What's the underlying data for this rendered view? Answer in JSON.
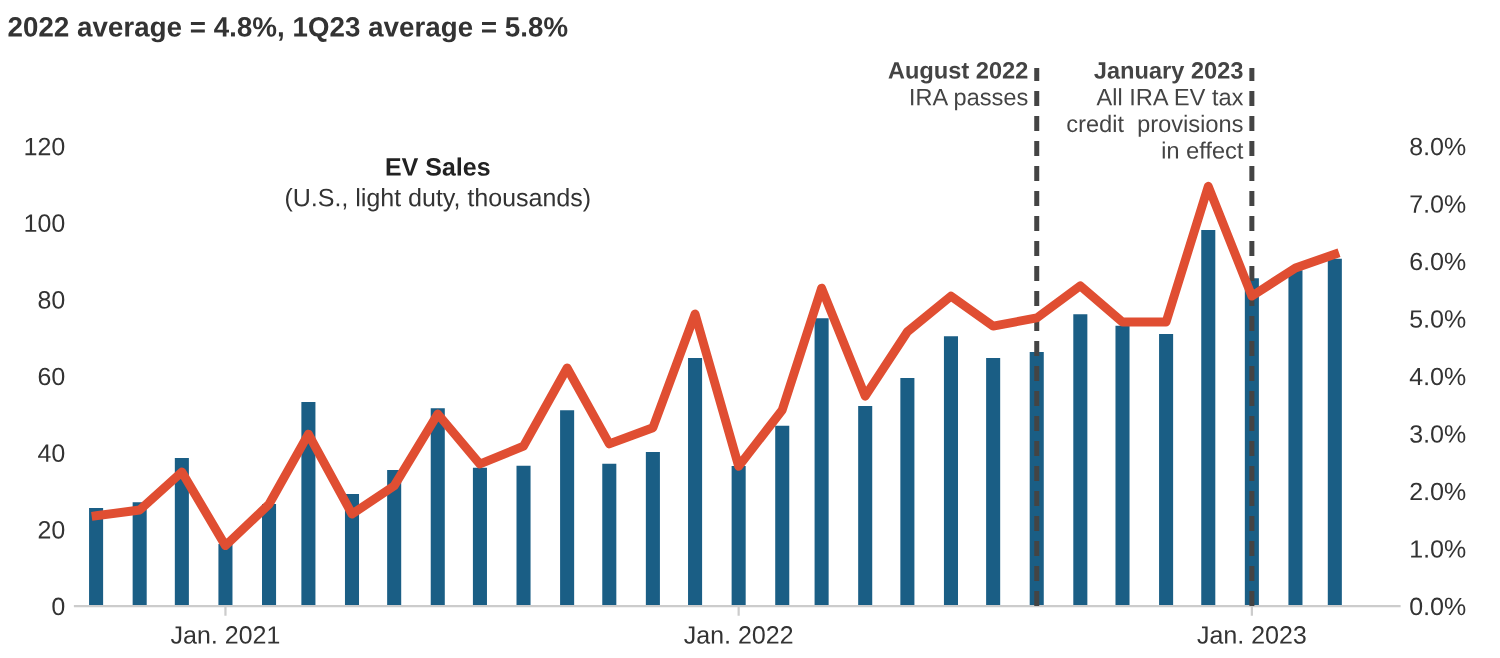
{
  "chart_data": {
    "type": "bar",
    "title": "2022 average = 4.8%, 1Q23 average = 5.8%",
    "x": [
      "2020-10",
      "2020-11",
      "2020-12",
      "2021-01",
      "2021-02",
      "2021-03",
      "2021-04",
      "2021-05",
      "2021-06",
      "2021-07",
      "2021-08",
      "2021-09",
      "2021-10",
      "2021-11",
      "2021-12",
      "2022-01",
      "2022-02",
      "2022-03",
      "2022-04",
      "2022-05",
      "2022-06",
      "2022-07",
      "2022-08",
      "2022-09",
      "2022-10",
      "2022-11",
      "2022-12",
      "2023-01",
      "2023-02",
      "2023-03"
    ],
    "series": [
      {
        "color": "#1a5e85",
        "values": [
          25.6,
          27.1,
          38.6,
          16.2,
          26.6,
          53.2,
          29.2,
          35.5,
          51.6,
          36.1,
          36.6,
          51.1,
          37.1,
          40.2,
          64.7,
          36.5,
          47.0,
          75.1,
          52.2,
          59.5,
          70.4,
          64.7,
          66.3,
          76.1,
          73.1,
          71.0,
          98.1,
          85.5,
          87.6,
          90.6
        ]
      },
      {
        "type": "line",
        "axis": "y2",
        "color": "#e04e32",
        "values": [
          1.57,
          1.67,
          2.33,
          1.05,
          1.77,
          2.99,
          1.6,
          2.09,
          3.34,
          2.47,
          2.78,
          4.14,
          2.82,
          3.1,
          5.08,
          2.43,
          3.41,
          5.53,
          3.65,
          4.77,
          5.39,
          4.87,
          5.01,
          5.57,
          4.94,
          4.94,
          7.3,
          5.39,
          5.88,
          6.12
        ]
      }
    ],
    "annotations": [
      "EV Sales",
      "(U.S., light duty, thousands)"
    ],
    "xlim": [
      "2020-09-16",
      "2023-04-16"
    ],
    "xticks": [
      {
        "value": "2021-01",
        "label": "Jan. 2021"
      },
      {
        "value": "2022-01",
        "label": "Jan. 2022"
      },
      {
        "value": "2023-01",
        "label": "Jan. 2023"
      }
    ],
    "ylim": [
      0,
      120
    ],
    "yticks": [
      0,
      20,
      40,
      60,
      80,
      100,
      120
    ],
    "y2lim": [
      0,
      8
    ],
    "y2ticks": [
      {
        "value": 0,
        "label": "0.0%"
      },
      {
        "value": 1,
        "label": "1.0%"
      },
      {
        "value": 2,
        "label": "2.0%"
      },
      {
        "value": 3,
        "label": "3.0%"
      },
      {
        "value": 4,
        "label": "4.0%"
      },
      {
        "value": 5,
        "label": "5.0%"
      },
      {
        "value": 6,
        "label": "6.0%"
      },
      {
        "value": 7,
        "label": "7.0%"
      },
      {
        "value": 8,
        "label": "8.0%"
      }
    ],
    "ref_lines": [
      {
        "axis": "x",
        "value": "2022-08",
        "label": "August 2022\nIRA passes",
        "color": "#444444",
        "line_style": "dashed"
      },
      {
        "axis": "x",
        "value": "2023-01",
        "label": "January 2023\nAll IRA EV tax\ncredit  provisions\nin effect",
        "color": "#444444",
        "line_style": "dashed"
      }
    ],
    "grid": false,
    "legend": false
  }
}
